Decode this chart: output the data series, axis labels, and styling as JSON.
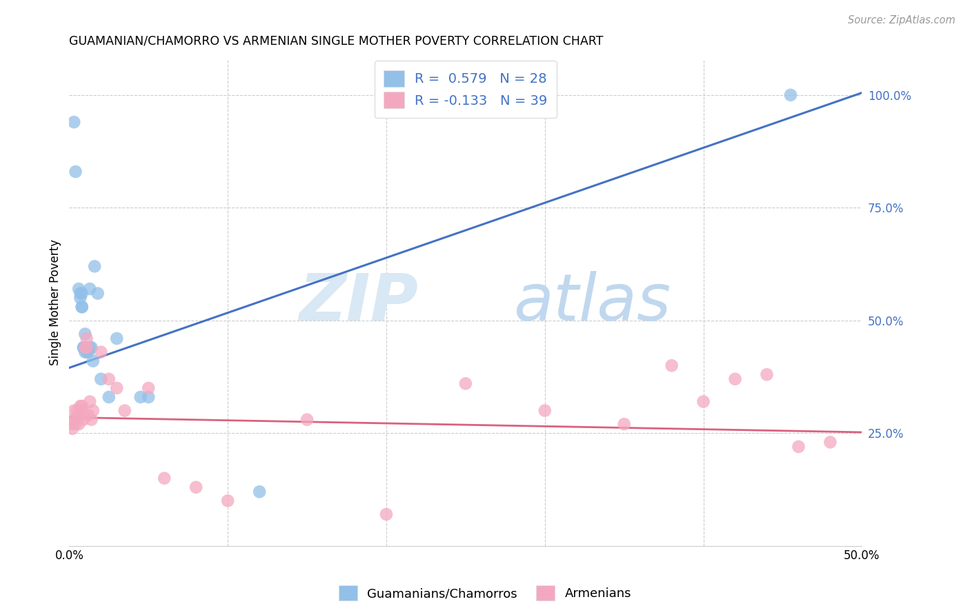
{
  "title": "GUAMANIAN/CHAMORRO VS ARMENIAN SINGLE MOTHER POVERTY CORRELATION CHART",
  "source": "Source: ZipAtlas.com",
  "ylabel": "Single Mother Poverty",
  "legend_label1": "Guamanians/Chamorros",
  "legend_label2": "Armenians",
  "R1": 0.579,
  "N1": 28,
  "R2": -0.133,
  "N2": 39,
  "color_blue": "#92C0E8",
  "color_pink": "#F4A8C0",
  "line_color_blue": "#4472C4",
  "line_color_pink": "#D9627E",
  "right_tick_color": "#4472C4",
  "grid_color": "#CCCCCC",
  "blue_line_x0": 0.0,
  "blue_line_y0": 0.395,
  "blue_line_x1": 0.5,
  "blue_line_y1": 1.005,
  "pink_line_x0": 0.0,
  "pink_line_y0": 0.285,
  "pink_line_x1": 0.5,
  "pink_line_y1": 0.252,
  "xlim": [
    0,
    0.5
  ],
  "ylim": [
    0,
    1.08
  ],
  "guam_x": [
    0.003,
    0.004,
    0.006,
    0.007,
    0.007,
    0.008,
    0.008,
    0.008,
    0.009,
    0.009,
    0.01,
    0.01,
    0.011,
    0.011,
    0.012,
    0.013,
    0.013,
    0.014,
    0.015,
    0.016,
    0.018,
    0.02,
    0.025,
    0.03,
    0.045,
    0.05,
    0.12,
    0.455
  ],
  "guam_y": [
    0.94,
    0.83,
    0.57,
    0.56,
    0.55,
    0.53,
    0.53,
    0.56,
    0.44,
    0.44,
    0.43,
    0.47,
    0.43,
    0.44,
    0.43,
    0.57,
    0.44,
    0.44,
    0.41,
    0.62,
    0.56,
    0.37,
    0.33,
    0.46,
    0.33,
    0.33,
    0.12,
    1.0
  ],
  "arm_x": [
    0.001,
    0.002,
    0.003,
    0.003,
    0.004,
    0.004,
    0.005,
    0.006,
    0.006,
    0.007,
    0.008,
    0.008,
    0.009,
    0.01,
    0.011,
    0.011,
    0.012,
    0.013,
    0.014,
    0.015,
    0.02,
    0.025,
    0.03,
    0.035,
    0.05,
    0.06,
    0.08,
    0.1,
    0.15,
    0.2,
    0.25,
    0.3,
    0.35,
    0.38,
    0.4,
    0.42,
    0.44,
    0.46,
    0.48
  ],
  "arm_y": [
    0.27,
    0.26,
    0.28,
    0.3,
    0.28,
    0.27,
    0.3,
    0.29,
    0.27,
    0.31,
    0.3,
    0.31,
    0.28,
    0.44,
    0.44,
    0.46,
    0.29,
    0.32,
    0.28,
    0.3,
    0.43,
    0.37,
    0.35,
    0.3,
    0.35,
    0.15,
    0.13,
    0.1,
    0.28,
    0.07,
    0.36,
    0.3,
    0.27,
    0.4,
    0.32,
    0.37,
    0.38,
    0.22,
    0.23
  ]
}
